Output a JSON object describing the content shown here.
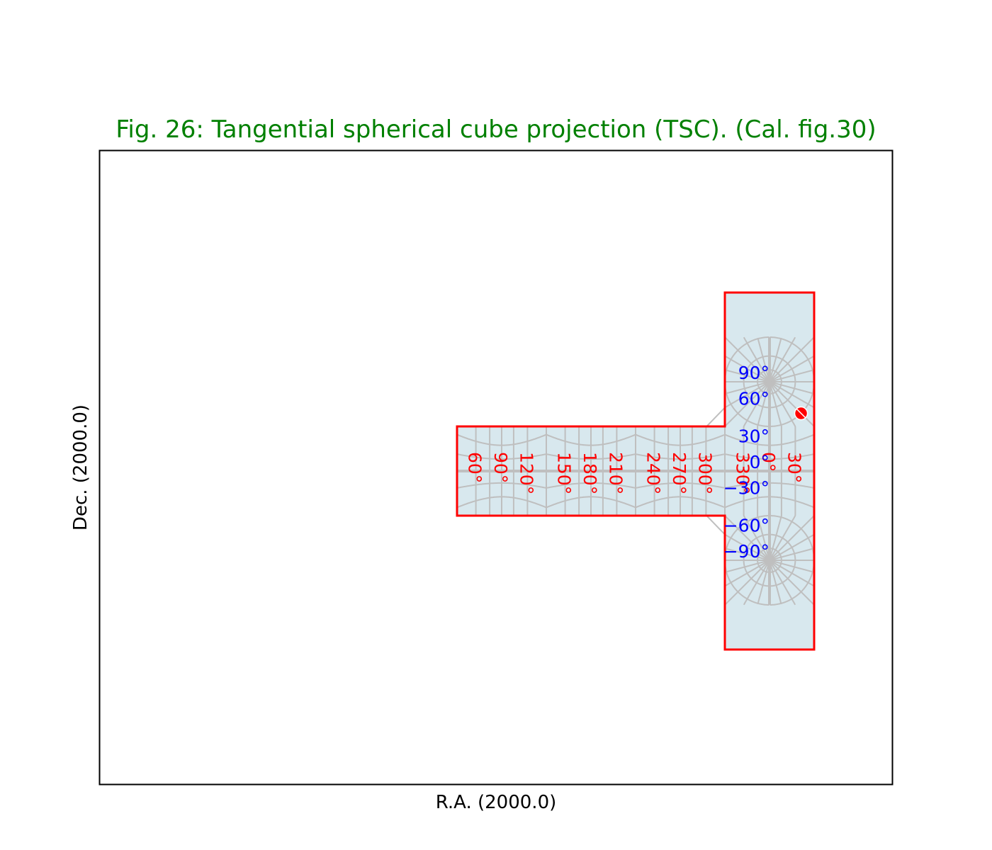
{
  "chart_data": {
    "type": "map-projection",
    "title": "Fig. 26: Tangential spherical cube projection (TSC). (Cal. fig.30)",
    "xlabel": "R.A. (2000.0)",
    "ylabel": "Dec. (2000.0)",
    "ra_ticks": [
      {
        "ra": 300,
        "label": "300°"
      },
      {
        "ra": 270,
        "label": "270°"
      },
      {
        "ra": 240,
        "label": "240°"
      },
      {
        "ra": 210,
        "label": "210°"
      },
      {
        "ra": 180,
        "label": "180°"
      },
      {
        "ra": 150,
        "label": "150°"
      },
      {
        "ra": 120,
        "label": "120°"
      },
      {
        "ra": 90,
        "label": "90°"
      },
      {
        "ra": 60,
        "label": "60°"
      },
      {
        "ra": 30,
        "label": "30°"
      },
      {
        "ra": 0,
        "label": "0°"
      },
      {
        "ra": 330,
        "label": "330°"
      }
    ],
    "dec_ticks": [
      {
        "dec": 90,
        "label": "90°"
      },
      {
        "dec": 60,
        "label": "60°"
      },
      {
        "dec": 30,
        "label": "30°"
      },
      {
        "dec": 0,
        "label": "0°"
      },
      {
        "dec": -30,
        "label": "−30°"
      },
      {
        "dec": -60,
        "label": "−60°"
      },
      {
        "dec": -90,
        "label": "−90°"
      }
    ],
    "ra_grid_step": 15,
    "dec_grid_step": 15,
    "marker": {
      "ra": 45,
      "dec": 45
    },
    "colors": {
      "title": "#008000",
      "boundary": "#ff0000",
      "ra_labels": "#ff0000",
      "dec_labels": "#0000ff",
      "graticule": "#bfbfbf",
      "fill": "#d8e8ee",
      "marker": "#ff0000"
    }
  }
}
